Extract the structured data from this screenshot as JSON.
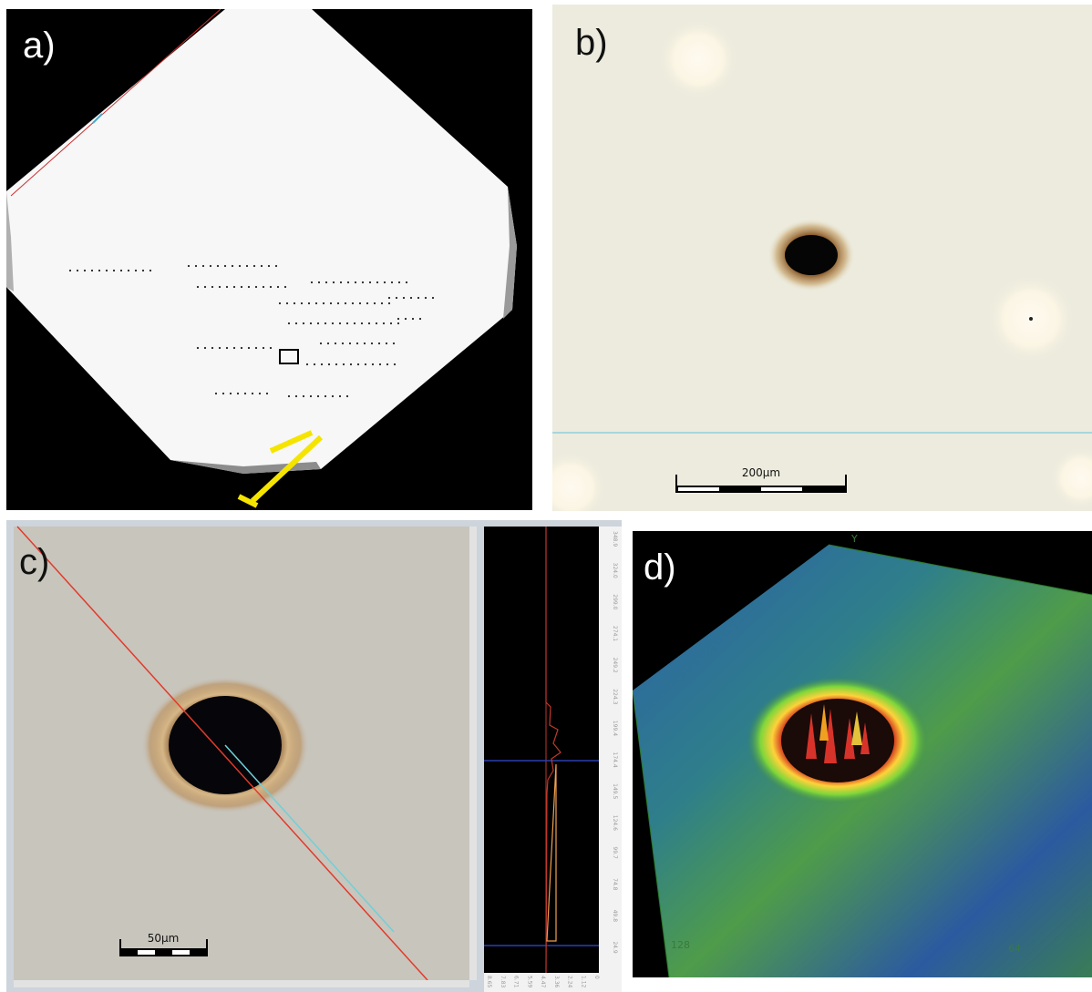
{
  "panels": {
    "a": {
      "label": "a)"
    },
    "b": {
      "label": "b)",
      "scale_bar": "200µm"
    },
    "c": {
      "label": "c)",
      "scale_bar": "50µm",
      "profile_y_ticks": [
        "348.9",
        "324.0",
        "299.0",
        "274.1",
        "249.2",
        "224.3",
        "199.4",
        "174.4",
        "149.5",
        "124.6",
        "99.7",
        "74.8",
        "49.8",
        "24.9",
        "0"
      ],
      "profile_x_ticks": [
        "8.65",
        "7.83",
        "6.71",
        "5.59",
        "4.47",
        "3.36",
        "2.24",
        "1.12",
        "0"
      ]
    },
    "d": {
      "label": "d)",
      "axis_y": "Y",
      "axis_left_value": "128",
      "axis_right_value": "64"
    }
  }
}
